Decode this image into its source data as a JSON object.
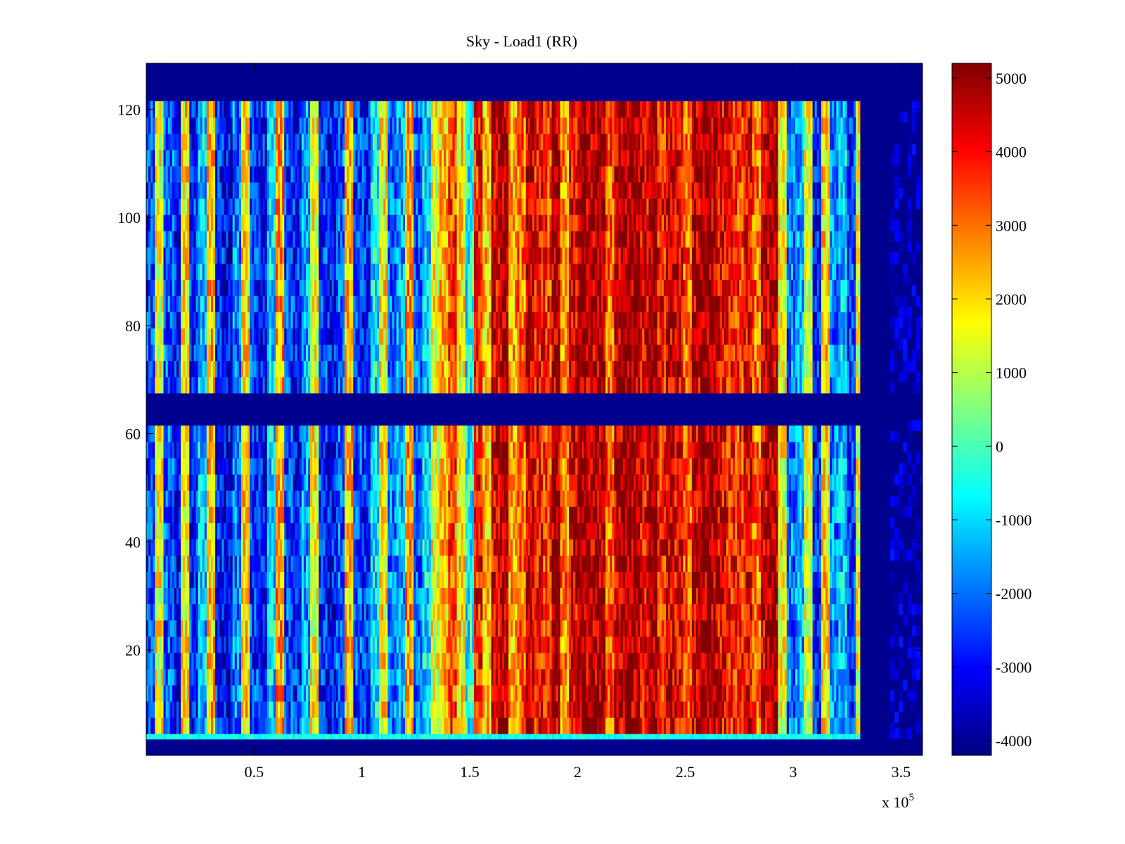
{
  "chart_data": {
    "type": "heatmap",
    "title": "Sky - Load1 (RR)",
    "xlabel": "",
    "ylabel": "",
    "x_exponent_label": "x 10",
    "x_exponent_power": "5",
    "xlim": [
      0,
      3.6
    ],
    "ylim": [
      0.5,
      128.5
    ],
    "x_ticks": [
      0.5,
      1,
      1.5,
      2,
      2.5,
      3,
      3.5
    ],
    "x_tick_labels": [
      "0.5",
      "1",
      "1.5",
      "2",
      "2.5",
      "3",
      "3.5"
    ],
    "y_ticks": [
      20,
      40,
      60,
      80,
      100,
      120
    ],
    "y_tick_labels": [
      "20",
      "40",
      "60",
      "80",
      "100",
      "120"
    ],
    "colorbar": {
      "colormap": "jet",
      "clim": [
        -4200,
        5200
      ],
      "ticks": [
        -4000,
        -3000,
        -2000,
        -1000,
        0,
        1000,
        2000,
        3000,
        4000,
        5000
      ],
      "tick_labels": [
        "-4000",
        "-3000",
        "-2000",
        "-1000",
        "0",
        "1000",
        "2000",
        "3000",
        "4000",
        "5000"
      ]
    },
    "empty_value": -4200,
    "data_row_blocks": [
      {
        "from": 4,
        "to": 4,
        "note": "bright row"
      },
      {
        "from": 5,
        "to": 61
      },
      {
        "from": 68,
        "to": 121
      }
    ],
    "column_profile_x": [
      0.0,
      0.04,
      0.08,
      0.12,
      0.16,
      0.2,
      0.24,
      0.28,
      0.32,
      0.36,
      0.4,
      0.44,
      0.48,
      0.52,
      0.56,
      0.6,
      0.64,
      0.68,
      0.72,
      0.76,
      0.8,
      0.84,
      0.88,
      0.92,
      0.96,
      1.0,
      1.04,
      1.08,
      1.12,
      1.16,
      1.2,
      1.24,
      1.28,
      1.32,
      1.36,
      1.4,
      1.44,
      1.48,
      1.52,
      1.56,
      1.6,
      1.64,
      1.68,
      1.72,
      1.76,
      1.8,
      1.84,
      1.88,
      1.92,
      1.96,
      2.0,
      2.04,
      2.08,
      2.12,
      2.16,
      2.2,
      2.24,
      2.28,
      2.32,
      2.36,
      2.4,
      2.44,
      2.48,
      2.52,
      2.56,
      2.6,
      2.64,
      2.68,
      2.72,
      2.76,
      2.8,
      2.84,
      2.88,
      2.92,
      2.96,
      3.0,
      3.04,
      3.08,
      3.12,
      3.16,
      3.2,
      3.24,
      3.28
    ],
    "column_profile_value": [
      -2500,
      1500,
      -2200,
      -3000,
      1800,
      -2600,
      -1200,
      2200,
      -2800,
      -3200,
      -1800,
      2000,
      -2500,
      -3000,
      -1000,
      2600,
      -2400,
      -2800,
      -1500,
      1600,
      -2600,
      -3000,
      -2200,
      2200,
      -2400,
      -2600,
      -800,
      1800,
      -2000,
      -1500,
      2600,
      -2200,
      -1000,
      1500,
      2200,
      3500,
      1800,
      -500,
      3800,
      2200,
      4300,
      4800,
      2500,
      3000,
      4600,
      4000,
      3600,
      4800,
      2800,
      4200,
      5000,
      4700,
      4900,
      3200,
      4600,
      5000,
      4800,
      4200,
      5000,
      3800,
      4500,
      4200,
      3200,
      4600,
      4900,
      4800,
      4200,
      3800,
      3600,
      4200,
      3000,
      4500,
      4800,
      1500,
      -2000,
      -1500,
      1200,
      -2800,
      2000,
      -1800,
      -1200,
      -2600,
      1400
    ],
    "sparse_column_x_range": [
      3.45,
      3.6
    ],
    "sparse_column_value": -3400
  }
}
